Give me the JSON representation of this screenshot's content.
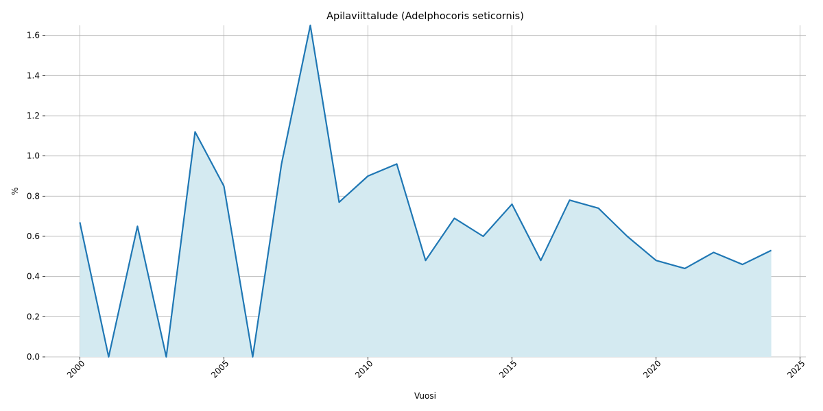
{
  "chart_data": {
    "type": "area",
    "title": "Apilaviittalude (Adelphocoris seticornis)",
    "x_label": "Vuosi",
    "y_label": "%",
    "x": [
      2000,
      2001,
      2002,
      2003,
      2004,
      2005,
      2006,
      2007,
      2008,
      2009,
      2010,
      2011,
      2012,
      2013,
      2014,
      2015,
      2016,
      2017,
      2018,
      2019,
      2020,
      2021,
      2022,
      2023,
      2024
    ],
    "values": [
      0.67,
      0,
      0.65,
      0,
      1.12,
      0.85,
      0,
      0.96,
      1.65,
      0.77,
      0.9,
      0.96,
      0.48,
      0.69,
      0.6,
      0.76,
      0.48,
      0.78,
      0.74,
      0.6,
      0.48,
      0.44,
      0.52,
      0.46,
      0.53
    ],
    "color": "#1f77b4",
    "fill_color": "#d4eaf1",
    "xlim": [
      1998.8,
      2025.2
    ],
    "xticks": [
      2000,
      2005,
      2010,
      2015,
      2020,
      2025
    ],
    "ylim": [
      0,
      1.65
    ],
    "yticks": [
      {
        "value": 0,
        "label": "0.0"
      },
      0.2,
      0.4,
      0.6,
      0.8,
      {
        "value": 1,
        "label": "1.0"
      },
      1.2,
      1.4,
      1.6
    ],
    "grid": true
  }
}
